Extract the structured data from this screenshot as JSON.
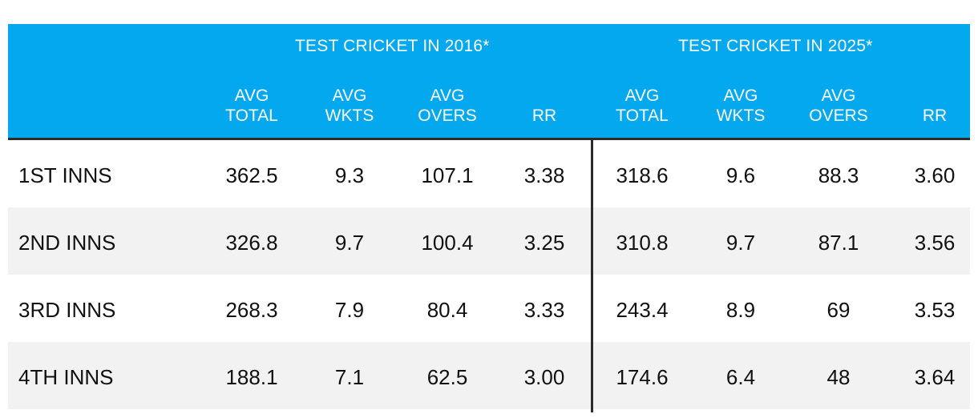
{
  "colors": {
    "header_bg": "#04a8ee",
    "header_text": "#ffffff",
    "alt_row_bg": "#f2f2f2",
    "rule": "#2b2b2b"
  },
  "groups": [
    {
      "title": "TEST CRICKET IN 2016*"
    },
    {
      "title": "TEST CRICKET IN 2025*"
    }
  ],
  "columns": [
    {
      "line1": "AVG",
      "line2": "TOTAL"
    },
    {
      "line1": "AVG",
      "line2": "WKTS"
    },
    {
      "line1": "AVG",
      "line2": "OVERS"
    },
    {
      "line1": "",
      "line2": "RR"
    },
    {
      "line1": "AVG",
      "line2": "TOTAL"
    },
    {
      "line1": "AVG",
      "line2": "WKTS"
    },
    {
      "line1": "AVG",
      "line2": "OVERS"
    },
    {
      "line1": "",
      "line2": "RR"
    }
  ],
  "rows": [
    {
      "label": "1ST INNS",
      "cells": [
        "362.5",
        "9.3",
        "107.1",
        "3.38",
        "318.6",
        "9.6",
        "88.3",
        "3.60"
      ]
    },
    {
      "label": "2ND INNS",
      "cells": [
        "326.8",
        "9.7",
        "100.4",
        "3.25",
        "310.8",
        "9.7",
        "87.1",
        "3.56"
      ]
    },
    {
      "label": "3RD INNS",
      "cells": [
        "268.3",
        "7.9",
        "80.4",
        "3.33",
        "243.4",
        "8.9",
        "69",
        "3.53"
      ]
    },
    {
      "label": "4TH INNS",
      "cells": [
        "188.1",
        "7.1",
        "62.5",
        "3.00",
        "174.6",
        "6.4",
        "48",
        "3.64"
      ]
    }
  ]
}
